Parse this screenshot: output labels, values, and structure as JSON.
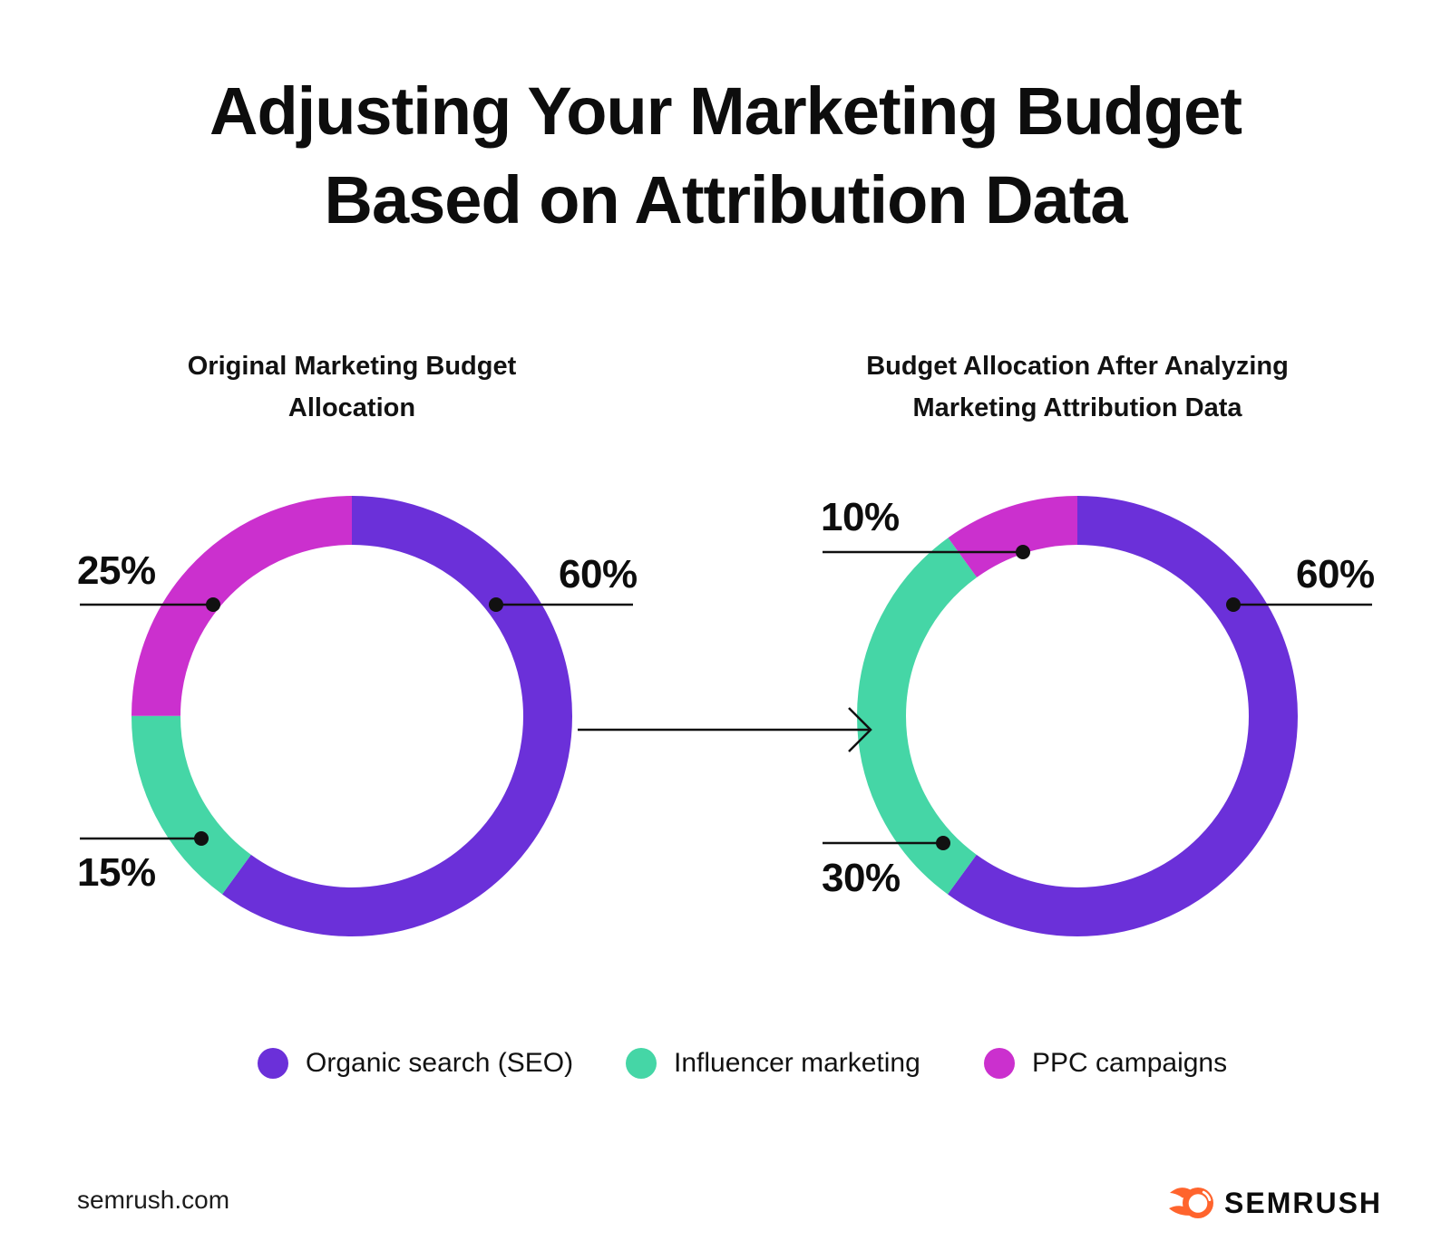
{
  "title": {
    "lines": [
      "Adjusting Your Marketing Budget",
      "Based on Attribution Data"
    ]
  },
  "colors": {
    "purple": "#6B30D9",
    "green": "#45D6A6",
    "magenta": "#CB30CE",
    "ink": "#111111",
    "brand_orange": "#FF642D"
  },
  "chart_data": [
    {
      "type": "pie",
      "subtype": "donut",
      "title": "Original Marketing Budget Allocation",
      "title_lines": [
        "Original Marketing Budget",
        "Allocation"
      ],
      "categories": [
        "Organic search (SEO)",
        "Influencer marketing",
        "PPC campaigns"
      ],
      "values": [
        60,
        15,
        25
      ],
      "labels": [
        "60%",
        "15%",
        "25%"
      ],
      "colors": [
        "#6B30D9",
        "#45D6A6",
        "#CB30CE"
      ],
      "start_angle": "12-o-clock",
      "direction": "clockwise",
      "legend_position": "bottom-shared"
    },
    {
      "type": "pie",
      "subtype": "donut",
      "title": "Budget Allocation After Analyzing Marketing Attribution Data",
      "title_lines": [
        "Budget Allocation After Analyzing",
        "Marketing Attribution Data"
      ],
      "categories": [
        "Organic search (SEO)",
        "Influencer marketing",
        "PPC campaigns"
      ],
      "values": [
        60,
        30,
        10
      ],
      "labels": [
        "60%",
        "30%",
        "10%"
      ],
      "colors": [
        "#6B30D9",
        "#45D6A6",
        "#CB30CE"
      ],
      "start_angle": "12-o-clock",
      "direction": "clockwise",
      "legend_position": "bottom-shared"
    }
  ],
  "legend": {
    "items": [
      {
        "label": "Organic search (SEO)",
        "color": "#6B30D9"
      },
      {
        "label": "Influencer marketing",
        "color": "#45D6A6"
      },
      {
        "label": "PPC campaigns",
        "color": "#CB30CE"
      }
    ]
  },
  "footer": {
    "site": "semrush.com",
    "brand": "SEMRUSH"
  }
}
